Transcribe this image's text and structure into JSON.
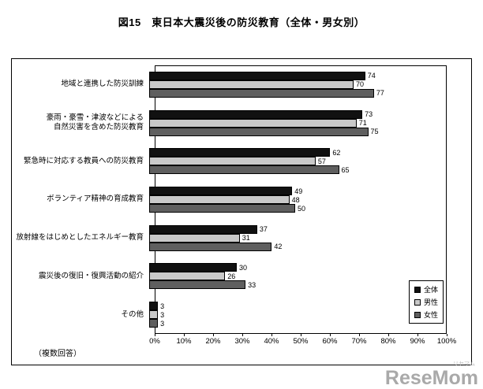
{
  "page": {
    "title": "図15　東日本大震災後の防災教育（全体・男女別）",
    "footnote": "（複数回答）",
    "watermark": "ReseMom",
    "watermark_small": "リセマム"
  },
  "chart_data": {
    "type": "bar",
    "orientation": "horizontal",
    "title": "図15　東日本大震災後の防災教育（全体・男女別）",
    "categories": [
      "地域と連携した防災訓練",
      "豪雨・豪雪・津波などによる\n自然災害を含めた防災教育",
      "緊急時に対応する教員への防災教育",
      "ボランティア精神の育成教育",
      "放射線をはじめとしたエネルギー教育",
      "震災後の復旧・復興活動の紹介",
      "その他"
    ],
    "series": [
      {
        "name": "全体",
        "color": "#111111",
        "values": [
          74,
          73,
          62,
          49,
          37,
          30,
          3
        ]
      },
      {
        "name": "男性",
        "color": "#c9c9c9",
        "values": [
          70,
          71,
          57,
          48,
          31,
          26,
          3
        ]
      },
      {
        "name": "女性",
        "color": "#5f5f5f",
        "values": [
          77,
          75,
          65,
          50,
          42,
          33,
          3
        ]
      }
    ],
    "xlim": [
      0,
      100
    ],
    "x_ticks": [
      "0%",
      "10%",
      "20%",
      "30%",
      "40%",
      "50%",
      "60%",
      "70%",
      "80%",
      "90%",
      "100%"
    ],
    "legend_position": "bottom-right",
    "grid": false,
    "value_labels": true
  }
}
